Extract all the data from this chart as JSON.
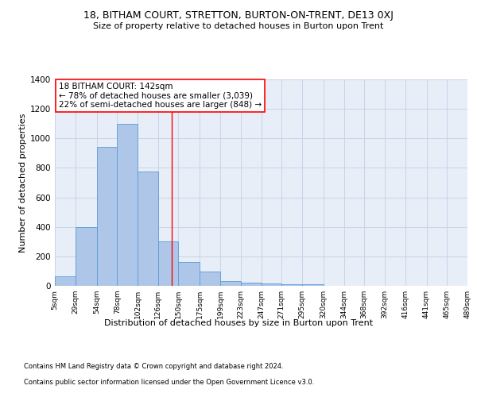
{
  "title": "18, BITHAM COURT, STRETTON, BURTON-ON-TRENT, DE13 0XJ",
  "subtitle": "Size of property relative to detached houses in Burton upon Trent",
  "xlabel": "Distribution of detached houses by size in Burton upon Trent",
  "ylabel": "Number of detached properties",
  "footnote1": "Contains HM Land Registry data © Crown copyright and database right 2024.",
  "footnote2": "Contains public sector information licensed under the Open Government Licence v3.0.",
  "annotation_line1": "18 BITHAM COURT: 142sqm",
  "annotation_line2": "← 78% of detached houses are smaller (3,039)",
  "annotation_line3": "22% of semi-detached houses are larger (848) →",
  "bar_color": "#aec6e8",
  "bar_edge_color": "#5b9bd5",
  "grid_color": "#c8d4e8",
  "bg_color": "#e8eef8",
  "vline_color": "red",
  "vline_x": 142,
  "bin_edges": [
    5,
    29,
    54,
    78,
    102,
    126,
    150,
    175,
    199,
    223,
    247,
    271,
    295,
    320,
    344,
    368,
    392,
    416,
    441,
    465,
    489
  ],
  "bar_heights": [
    65,
    400,
    940,
    1100,
    775,
    300,
    160,
    95,
    35,
    20,
    15,
    10,
    10,
    0,
    0,
    0,
    0,
    0,
    0,
    0
  ],
  "ylim": [
    0,
    1400
  ],
  "yticks": [
    0,
    200,
    400,
    600,
    800,
    1000,
    1200,
    1400
  ],
  "tick_labels": [
    "5sqm",
    "29sqm",
    "54sqm",
    "78sqm",
    "102sqm",
    "126sqm",
    "150sqm",
    "175sqm",
    "199sqm",
    "223sqm",
    "247sqm",
    "271sqm",
    "295sqm",
    "320sqm",
    "344sqm",
    "368sqm",
    "392sqm",
    "416sqm",
    "441sqm",
    "465sqm",
    "489sqm"
  ],
  "title_fontsize": 9,
  "subtitle_fontsize": 8,
  "ylabel_fontsize": 8,
  "xlabel_fontsize": 8,
  "footnote_fontsize": 6,
  "annotation_fontsize": 7.5,
  "ytick_fontsize": 7.5,
  "xtick_fontsize": 6.5
}
